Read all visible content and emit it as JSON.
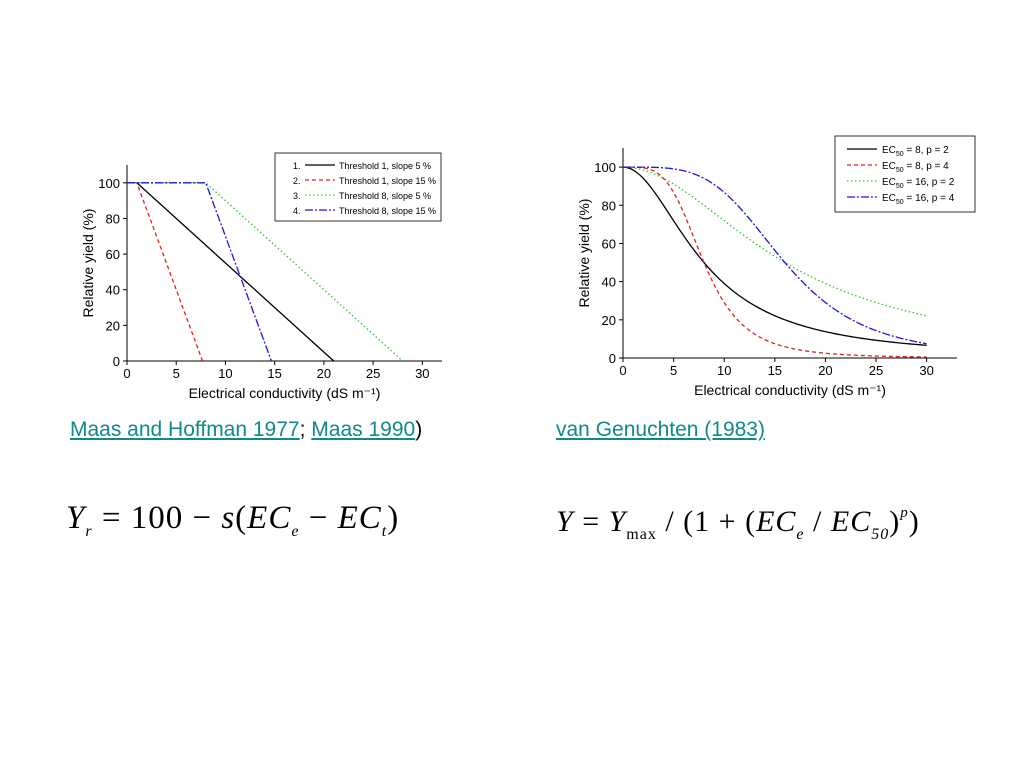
{
  "chart_data": [
    {
      "type": "line",
      "xlabel": "Electrical conductivity (dS m⁻¹)",
      "ylabel": "Relative yield (%)",
      "xlim": [
        0,
        32
      ],
      "ylim": [
        0,
        110
      ],
      "xticks": [
        0,
        5,
        10,
        15,
        20,
        25,
        30
      ],
      "yticks": [
        0,
        20,
        40,
        60,
        80,
        100
      ],
      "legend_position": "top-right",
      "series": [
        {
          "name": "Threshold 1, slope 5 %",
          "number": "1.",
          "color": "#000000",
          "dash": "",
          "x": [
            0,
            1,
            21
          ],
          "y": [
            100,
            100,
            0
          ]
        },
        {
          "name": "Threshold 1, slope 15 %",
          "number": "2.",
          "color": "#e0201a",
          "dash": "4,3",
          "x": [
            0,
            1,
            7.67
          ],
          "y": [
            100,
            100,
            0
          ]
        },
        {
          "name": "Threshold 8, slope 5 %",
          "number": "3.",
          "color": "#22cc22",
          "dash": "1.5,2.5",
          "x": [
            0,
            8,
            28
          ],
          "y": [
            100,
            100,
            0
          ]
        },
        {
          "name": "Threshold 8, slope 15 %",
          "number": "4.",
          "color": "#1a1ad8",
          "dash": "8,2,2,2",
          "x": [
            0,
            8,
            14.67
          ],
          "y": [
            100,
            100,
            0
          ]
        }
      ]
    },
    {
      "type": "line",
      "xlabel": "Electrical conductivity (dS m⁻¹)",
      "ylabel": "Relative yield (%)",
      "xlim": [
        0,
        33
      ],
      "ylim": [
        0,
        110
      ],
      "xticks": [
        0,
        5,
        10,
        15,
        20,
        25,
        30
      ],
      "yticks": [
        0,
        20,
        40,
        60,
        80,
        100
      ],
      "legend_position": "top-right",
      "model": "Y = 100 / (1 + (x / EC50)^p)",
      "x_range": [
        0,
        30
      ],
      "series": [
        {
          "ec50": 8,
          "p": 2,
          "label_ec": "EC",
          "label_sub": "50",
          "label_rest": " =   8, p = 2",
          "color": "#000000",
          "dash": ""
        },
        {
          "ec50": 8,
          "p": 4,
          "label_ec": "EC",
          "label_sub": "50",
          "label_rest": " =   8, p = 4",
          "color": "#e0201a",
          "dash": "4,3"
        },
        {
          "ec50": 16,
          "p": 2,
          "label_ec": "EC",
          "label_sub": "50",
          "label_rest": " = 16, p = 2",
          "color": "#22cc22",
          "dash": "1.5,2.5"
        },
        {
          "ec50": 16,
          "p": 4,
          "label_ec": "EC",
          "label_sub": "50",
          "label_rest": " = 16, p = 4",
          "color": "#1a1ad8",
          "dash": "8,2,2,2"
        }
      ]
    }
  ],
  "citations": {
    "left": {
      "link1": "Maas and Hoffman 1977",
      "sep": "; ",
      "link2": "Maas 1990",
      "close": ")"
    },
    "right": {
      "link1": "van Genuchten (1983)"
    }
  },
  "formulas": {
    "left": {
      "Y": "Y",
      "r": "r",
      "eq": " = 100 − ",
      "s": "s",
      "open": "(",
      "EC1": "EC",
      "e": "e",
      "minus": " − ",
      "EC2": "EC",
      "t": "t",
      "close": ")"
    },
    "right": {
      "Y": "Y",
      "eq": " = ",
      "Y2": "Y",
      "max": "max",
      "div1": " / (1 + (",
      "EC1": "EC",
      "e": "e",
      "div2": " / ",
      "EC2": "EC",
      "sub50": "50",
      "close": ")",
      "p": "p",
      "close2": ")"
    }
  }
}
